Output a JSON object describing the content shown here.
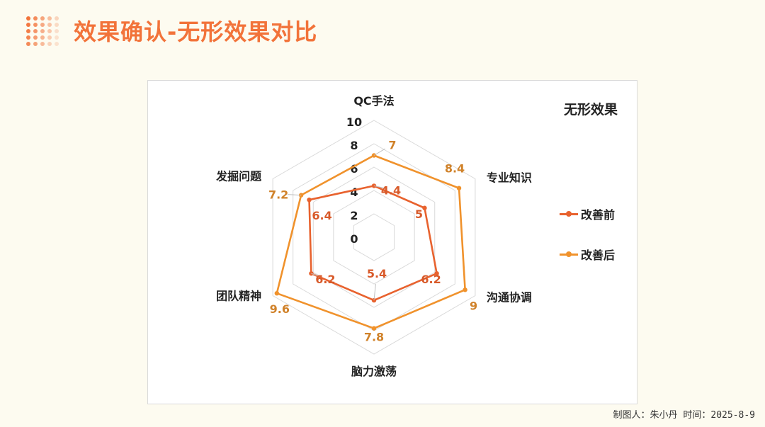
{
  "header": {
    "title": "效果确认-无形效果对比",
    "logo_icon": "dot-grid-icon",
    "accent_color": "#F2733A"
  },
  "chart_data": {
    "type": "radar",
    "title": "无形效果",
    "categories": [
      "QC手法",
      "专业知识",
      "沟通协调",
      "脑力激荡",
      "团队精神",
      "发掘问题"
    ],
    "radial_ticks": [
      0,
      2,
      4,
      6,
      8,
      10
    ],
    "rlim": [
      0,
      10
    ],
    "grid": true,
    "legend_position": "right",
    "series": [
      {
        "name": "改善前",
        "values": [
          4.4,
          5,
          6.2,
          5.4,
          6.2,
          6.4
        ],
        "color": "#E8622E"
      },
      {
        "name": "改善后",
        "values": [
          7,
          8.4,
          9,
          7.8,
          9.6,
          7.2
        ],
        "color": "#F0922C"
      }
    ]
  },
  "footer": {
    "text": "制图人：朱小丹 时间：2025-8-9"
  }
}
